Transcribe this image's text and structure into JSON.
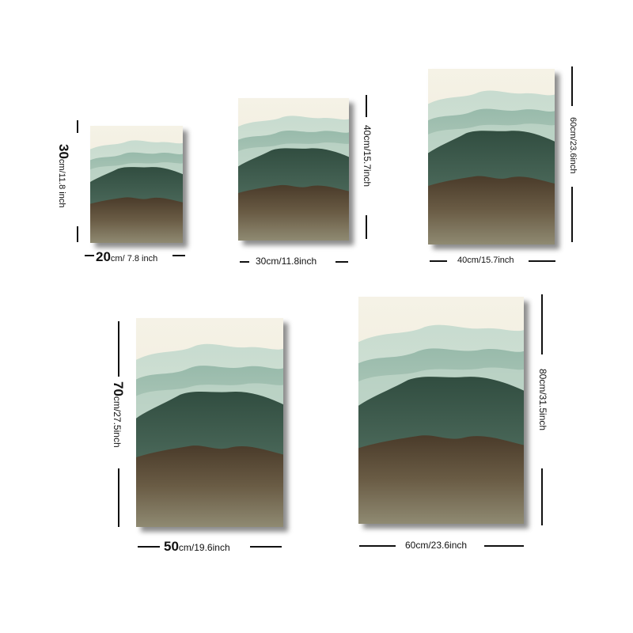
{
  "colors": {
    "paper": "#f3f0e2",
    "mist": "#a9c9bb",
    "forest": "#3f5a4c",
    "earth": "#5b4a34",
    "shadow": "#000000"
  },
  "canvases": [
    {
      "id": "small",
      "width": {
        "num": "20",
        "unit": "cm/ 7.8 inch"
      },
      "height": {
        "num": "30",
        "unit": "cm/11.8 inch"
      }
    },
    {
      "id": "s2",
      "width": {
        "num": "",
        "unit": "30cm/11.8inch"
      },
      "height": {
        "num": "",
        "unit": "40cm/15.7inch"
      }
    },
    {
      "id": "s3",
      "width": {
        "num": "",
        "unit": "40cm/15.7inch"
      },
      "height": {
        "num": "",
        "unit": "60cm/23.6inch"
      }
    },
    {
      "id": "s4",
      "width": {
        "num": "50",
        "unit": "cm/19.6inch"
      },
      "height": {
        "num": "70",
        "unit": "cm/27.5inch"
      }
    },
    {
      "id": "s5",
      "width": {
        "num": "",
        "unit": "60cm/23.6inch"
      },
      "height": {
        "num": "",
        "unit": "80cm/31.5inch"
      }
    }
  ]
}
